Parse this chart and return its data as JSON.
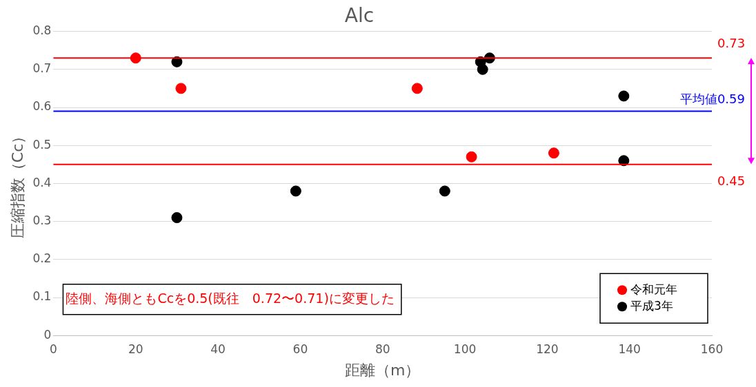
{
  "chart_data": {
    "type": "scatter",
    "title": "Alc",
    "xlabel": "距離（m）",
    "ylabel": "圧縮指数（Cc）",
    "xlim": [
      0,
      160
    ],
    "xticks": [
      0,
      20,
      40,
      60,
      80,
      100,
      120,
      140,
      160
    ],
    "ylim": [
      0,
      0.8
    ],
    "yticks": [
      0,
      0.1,
      0.2,
      0.3,
      0.4,
      0.5,
      0.6,
      0.7,
      0.8
    ],
    "grid": "y",
    "legend": "bottom right",
    "marker": "circle",
    "series": [
      {
        "name": "令和元年",
        "color": "#ff0000",
        "x": [
          20,
          31,
          88.4,
          101.6,
          121.6
        ],
        "values": [
          0.73,
          0.65,
          0.65,
          0.47,
          0.48
        ]
      },
      {
        "name": "平成3年",
        "color": "#000000",
        "x": [
          30,
          30,
          58.9,
          95.1,
          103.8,
          104.3,
          106,
          138.6,
          138.6
        ],
        "values": [
          0.72,
          0.31,
          0.38,
          0.38,
          0.72,
          0.7,
          0.73,
          0.63,
          0.46
        ]
      }
    ],
    "ref_lines": [
      {
        "axis": "y",
        "value": 0.73,
        "label": "0.73",
        "color": "#ff0000"
      },
      {
        "axis": "y",
        "value": 0.59,
        "label": "平均値0.59",
        "color": "#0000ff"
      },
      {
        "axis": "y",
        "value": 0.45,
        "label": "0.45",
        "color": "#ff0000"
      }
    ],
    "annotations": [
      "陸側、海側ともCcを0.5(既往　0.72〜0.71)に変更した"
    ]
  }
}
